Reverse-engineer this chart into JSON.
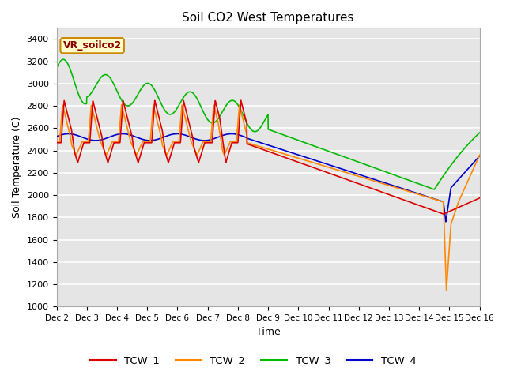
{
  "title": "Soil CO2 West Temperatures",
  "xlabel": "Time",
  "ylabel": "Soil Temperature (C)",
  "ylim": [
    1000,
    3500
  ],
  "yticks": [
    1000,
    1200,
    1400,
    1600,
    1800,
    2000,
    2200,
    2400,
    2600,
    2800,
    3000,
    3200,
    3400
  ],
  "bg_color": "#e5e5e5",
  "annotation_text": "VR_soilco2",
  "annotation_bg": "#ffffcc",
  "annotation_border": "#cc8800",
  "series": {
    "TCW_1": {
      "color": "#dd0000",
      "linewidth": 1.2
    },
    "TCW_2": {
      "color": "#ff8800",
      "linewidth": 1.2
    },
    "TCW_3": {
      "color": "#00bb00",
      "linewidth": 1.2
    },
    "TCW_4": {
      "color": "#0000cc",
      "linewidth": 1.2
    }
  },
  "xtick_labels": [
    "Dec 2",
    "Dec 3",
    "Dec 4",
    "Dec 5",
    "Dec 6",
    "Dec 7",
    "Dec 8",
    "Dec 9",
    "Dec 10",
    "Dec 11",
    "Dec 12",
    "Dec 13",
    "Dec 14",
    "Dec 15",
    "Dec 16"
  ],
  "xtick_positions": [
    2,
    3,
    4,
    5,
    6,
    7,
    8,
    9,
    10,
    11,
    12,
    13,
    14,
    15,
    16
  ]
}
